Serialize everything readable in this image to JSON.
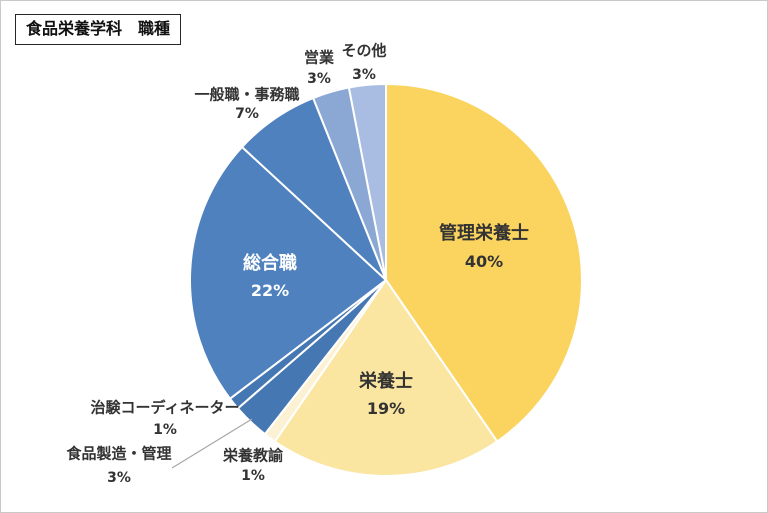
{
  "title": "食品栄養学科　職種",
  "chart_data": {
    "type": "pie",
    "title": "食品栄養学科　職種",
    "unit": "%",
    "start_angle_deg": 0,
    "direction": "clockwise",
    "legend": "none",
    "slices": [
      {
        "key": "registered-dietitian",
        "label": "管理栄養士",
        "value": 40,
        "pct_label": "40%",
        "color": "#FBD45F"
      },
      {
        "key": "dietitian",
        "label": "栄養士",
        "value": 19,
        "pct_label": "19%",
        "color": "#FAE5A1"
      },
      {
        "key": "nutrition-teacher",
        "label": "栄養教諭",
        "value": 1,
        "pct_label": "1%",
        "color": "#FCF1D3"
      },
      {
        "key": "food-manufacturing-management",
        "label": "食品製造・管理",
        "value": 3,
        "pct_label": "3%",
        "color": "#4577B2"
      },
      {
        "key": "clinical-trial-coordinator",
        "label": "治験コーディネーター",
        "value": 1,
        "pct_label": "1%",
        "color": "#4577B2"
      },
      {
        "key": "comprehensive-position",
        "label": "総合職",
        "value": 22,
        "pct_label": "22%",
        "color": "#4E81BD"
      },
      {
        "key": "general-office-work",
        "label": "一般職・事務職",
        "value": 7,
        "pct_label": "7%",
        "color": "#4E81BD"
      },
      {
        "key": "sales",
        "label": "営業",
        "value": 3,
        "pct_label": "3%",
        "color": "#8BA7D3"
      },
      {
        "key": "other",
        "label": "その他",
        "value": 3,
        "pct_label": "3%",
        "color": "#A9BDE2"
      }
    ],
    "outside_label_color": "#333333",
    "inside_label_color": "#FFFFFF",
    "slice_border_color": "#FFFFFF",
    "leader_line_color": "#A6A6A6",
    "leader_line_for": "food-manufacturing-management"
  }
}
